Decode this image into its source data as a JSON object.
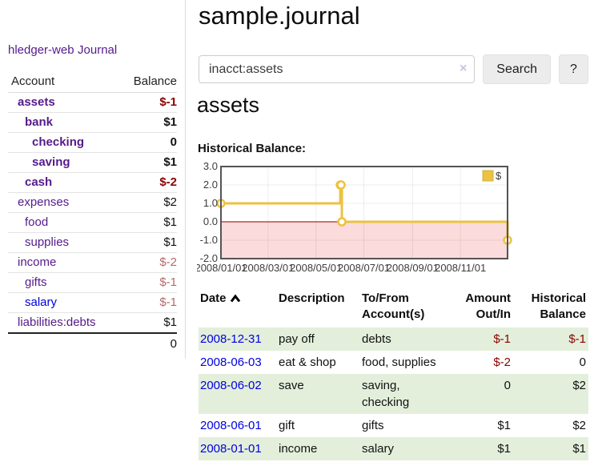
{
  "app": {
    "brand": "hledger-web",
    "nav_journal": "Journal"
  },
  "sidebar": {
    "headers": {
      "account": "Account",
      "balance": "Balance"
    },
    "rows": [
      {
        "account": "assets",
        "balance": "$-1"
      },
      {
        "account": "bank",
        "balance": "$1"
      },
      {
        "account": "checking",
        "balance": "0"
      },
      {
        "account": "saving",
        "balance": "$1"
      },
      {
        "account": "cash",
        "balance": "$-2"
      },
      {
        "account": "expenses",
        "balance": "$2"
      },
      {
        "account": "food",
        "balance": "$1"
      },
      {
        "account": "supplies",
        "balance": "$1"
      },
      {
        "account": "income",
        "balance": "$-2"
      },
      {
        "account": "gifts",
        "balance": "$-1"
      },
      {
        "account": "salary",
        "balance": "$-1"
      },
      {
        "account": "liabilities:debts",
        "balance": "$1"
      }
    ],
    "total": "0"
  },
  "main": {
    "title": "sample.journal",
    "search": {
      "value": "inacct:assets",
      "clear": "×",
      "button": "Search",
      "help": "?"
    },
    "account_title": "assets",
    "chart_label": "Historical Balance:",
    "register": {
      "headers": {
        "date": "Date",
        "description": "Description",
        "accounts_line1": "To/From",
        "accounts_line2": "Account(s)",
        "amount_line1": "Amount",
        "amount_line2": "Out/In",
        "balance_line1": "Historical",
        "balance_line2": "Balance"
      },
      "rows": [
        {
          "date": "2008-12-31",
          "description": "pay off",
          "accounts": "debts",
          "amount": "$-1",
          "balance": "$-1"
        },
        {
          "date": "2008-06-03",
          "description": "eat & shop",
          "accounts": "food, supplies",
          "amount": "$-2",
          "balance": "0"
        },
        {
          "date": "2008-06-02",
          "description": "save",
          "accounts": "saving, checking",
          "amount": "0",
          "balance": "$2"
        },
        {
          "date": "2008-06-01",
          "description": "gift",
          "accounts": "gifts",
          "amount": "$1",
          "balance": "$2"
        },
        {
          "date": "2008-01-01",
          "description": "income",
          "accounts": "salary",
          "amount": "$1",
          "balance": "$1"
        }
      ]
    }
  },
  "chart_data": {
    "type": "line",
    "title": "Historical Balance",
    "step": true,
    "series": [
      {
        "name": "$",
        "points": [
          [
            "2008-01-01",
            1
          ],
          [
            "2008-06-01",
            2
          ],
          [
            "2008-06-02",
            2
          ],
          [
            "2008-06-03",
            0
          ],
          [
            "2008-12-31",
            -1
          ]
        ]
      }
    ],
    "xlim": [
      "2008-01-01",
      "2008-12-31"
    ],
    "ylim": [
      -2,
      3
    ],
    "xticks": [
      "2008/01/01",
      "2008/03/01",
      "2008/05/01",
      "2008/07/01",
      "2008/09/01",
      "2008/11/01"
    ],
    "yticks": [
      "3.0",
      "2.0",
      "1.0",
      "0.0",
      "-1.0",
      "-2.0"
    ],
    "legend": {
      "position": "top-right",
      "label": "$"
    },
    "colors": {
      "line": "#edc240",
      "marker_fill": "#ffffff",
      "negative_fill": "#fbdbdb",
      "zero_line": "#8b0000",
      "border": "#545454",
      "grid": "rgba(0,0,0,0.07)",
      "axis_text": "#3c3c3c"
    }
  }
}
